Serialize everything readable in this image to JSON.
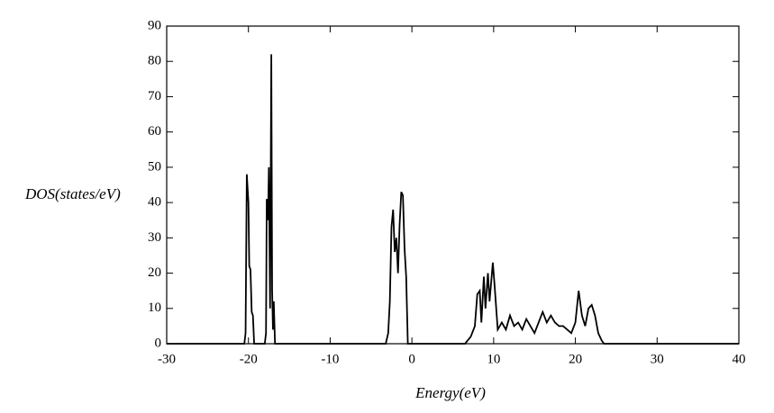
{
  "chart_data": {
    "type": "line",
    "xlabel": "Energy(eV)",
    "ylabel": "DOS(states/eV)",
    "color": "#000000",
    "x": [
      -30,
      -20.5,
      -20.35,
      -20.2,
      -20.0,
      -19.9,
      -19.75,
      -19.6,
      -19.45,
      -19.3,
      -19.15,
      -18.0,
      -17.85,
      -17.76,
      -17.6,
      -17.5,
      -17.35,
      -17.2,
      -17.1,
      -17.0,
      -16.9,
      -16.75,
      -3.2,
      -2.9,
      -2.7,
      -2.5,
      -2.3,
      -2.1,
      -1.9,
      -1.7,
      -1.5,
      -1.3,
      -1.1,
      -0.9,
      -0.7,
      -0.5,
      6.5,
      7.2,
      7.7,
      8.0,
      8.3,
      8.5,
      8.8,
      9.0,
      9.3,
      9.5,
      9.9,
      10.1,
      10.5,
      11.0,
      11.5,
      12.0,
      12.5,
      13.0,
      13.5,
      14.0,
      14.5,
      15.0,
      15.5,
      16.0,
      16.5,
      17.0,
      17.5,
      18.0,
      18.5,
      19.0,
      19.5,
      20.0,
      20.4,
      20.8,
      21.2,
      21.6,
      22.0,
      22.4,
      22.8,
      23.2,
      23.5,
      40
    ],
    "values": [
      0,
      0,
      3,
      48,
      40,
      22,
      21,
      9,
      8,
      0,
      0,
      0,
      3,
      41,
      35,
      50,
      10,
      82,
      15,
      4,
      12,
      0,
      0,
      3,
      12,
      33,
      38,
      26,
      30,
      20,
      34,
      43,
      42,
      27,
      19,
      0,
      0,
      2,
      5,
      14,
      15,
      6,
      19,
      10,
      20,
      12,
      23,
      17,
      4,
      6,
      4,
      8,
      5,
      6,
      4,
      7,
      5,
      3,
      6,
      9,
      6,
      8,
      6,
      5,
      5,
      4,
      3,
      6,
      15,
      8,
      5,
      10,
      11,
      8,
      3,
      1,
      0,
      0
    ],
    "xlim": [
      -30,
      40
    ],
    "ylim": [
      0,
      90
    ],
    "xticks": [
      -30,
      -20,
      -10,
      0,
      10,
      20,
      30,
      40
    ],
    "yticks": [
      0,
      10,
      20,
      30,
      40,
      50,
      60,
      70,
      80,
      90
    ]
  }
}
